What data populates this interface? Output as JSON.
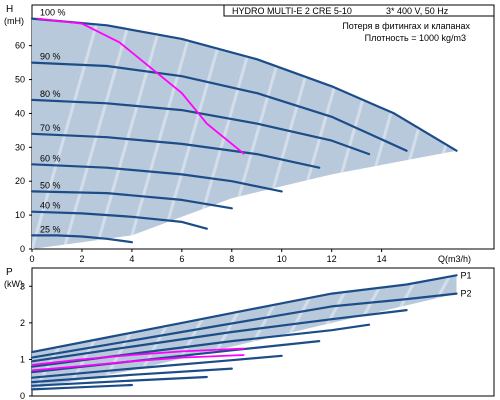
{
  "header": {
    "model": "HYDRO MULTI-E 2 CRE 5-10",
    "supply": "3* 400 V, 50 Hz",
    "note1": "Потеря в фитингах и клапанах",
    "note2": "Плотность = 1000 kg/m3"
  },
  "colors": {
    "envelope": "#b9c9dc",
    "curve": "#1c4d88",
    "system_curve": "#ff00ff",
    "frame": "#000000",
    "hatch": "#e9eff6"
  },
  "chart_data": [
    {
      "type": "line",
      "ylabel_top": "H",
      "ylabel_unit": "(mH)",
      "xlabel": "Q(m3/h)",
      "xlim": [
        0,
        18.5
      ],
      "ylim": [
        0,
        72
      ],
      "xticks": [
        0,
        2,
        4,
        6,
        8,
        10,
        12,
        14
      ],
      "yticks": [
        0,
        10,
        20,
        30,
        40,
        50,
        60
      ],
      "grid": false,
      "envelope": [
        [
          0,
          68
        ],
        [
          3,
          66
        ],
        [
          6,
          62
        ],
        [
          9,
          56
        ],
        [
          12,
          48
        ],
        [
          14.5,
          40
        ],
        [
          17,
          29
        ],
        [
          12,
          22
        ],
        [
          8,
          15
        ],
        [
          4,
          4
        ],
        [
          2,
          2
        ],
        [
          0,
          0
        ]
      ],
      "series": [
        {
          "name": "100 %",
          "points": [
            [
              0,
              68
            ],
            [
              3,
              66
            ],
            [
              6,
              62
            ],
            [
              9,
              56
            ],
            [
              12,
              48
            ],
            [
              14.5,
              40
            ],
            [
              17,
              29
            ]
          ]
        },
        {
          "name": "90 %",
          "points": [
            [
              0,
              55
            ],
            [
              3,
              54
            ],
            [
              6,
              51
            ],
            [
              9,
              46
            ],
            [
              12,
              39
            ],
            [
              15,
              29
            ]
          ]
        },
        {
          "name": "80 %",
          "points": [
            [
              0,
              44
            ],
            [
              3,
              43
            ],
            [
              6,
              41
            ],
            [
              9,
              37
            ],
            [
              12,
              32
            ],
            [
              13.5,
              28
            ]
          ]
        },
        {
          "name": "70 %",
          "points": [
            [
              0,
              34
            ],
            [
              3,
              33
            ],
            [
              6,
              31
            ],
            [
              9,
              28
            ],
            [
              11.5,
              24
            ]
          ]
        },
        {
          "name": "60 %",
          "points": [
            [
              0,
              25
            ],
            [
              3,
              24
            ],
            [
              6,
              22
            ],
            [
              8,
              20
            ],
            [
              10,
              17
            ]
          ]
        },
        {
          "name": "50 %",
          "points": [
            [
              0,
              17
            ],
            [
              3,
              16.5
            ],
            [
              6,
              14.5
            ],
            [
              8,
              12
            ]
          ]
        },
        {
          "name": "40 %",
          "points": [
            [
              0,
              11
            ],
            [
              2,
              10.5
            ],
            [
              4,
              9.5
            ],
            [
              6,
              8
            ],
            [
              7,
              6
            ]
          ]
        },
        {
          "name": "25 %",
          "points": [
            [
              0,
              4
            ],
            [
              1,
              4
            ],
            [
              2,
              3.7
            ],
            [
              3,
              3
            ],
            [
              4,
              2
            ]
          ]
        }
      ],
      "system_curve": [
        [
          0.2,
          68
        ],
        [
          2,
          66.5
        ],
        [
          3.5,
          61
        ],
        [
          5,
          52
        ],
        [
          6,
          46
        ],
        [
          7,
          37
        ],
        [
          8,
          31
        ],
        [
          8.5,
          28
        ]
      ]
    },
    {
      "type": "line",
      "ylabel_top": "P",
      "ylabel_unit": "(kW)",
      "xlim": [
        0,
        18.5
      ],
      "ylim": [
        0,
        3.5
      ],
      "yticks": [
        0,
        1,
        2,
        3
      ],
      "grid": false,
      "envelope": [
        [
          0,
          1.2
        ],
        [
          3,
          1.6
        ],
        [
          6,
          2.0
        ],
        [
          9,
          2.4
        ],
        [
          12,
          2.8
        ],
        [
          15,
          3.05
        ],
        [
          17,
          3.3
        ],
        [
          17,
          2.8
        ],
        [
          12,
          2.0
        ],
        [
          8,
          1.35
        ],
        [
          4,
          0.7
        ],
        [
          0,
          0.2
        ]
      ],
      "series": [
        {
          "name": "P1",
          "points": [
            [
              0,
              1.2
            ],
            [
              3,
              1.6
            ],
            [
              6,
              2.0
            ],
            [
              9,
              2.4
            ],
            [
              12,
              2.8
            ],
            [
              15,
              3.05
            ],
            [
              17,
              3.3
            ]
          ]
        },
        {
          "name": "P2",
          "points": [
            [
              0,
              1.05
            ],
            [
              3,
              1.4
            ],
            [
              6,
              1.75
            ],
            [
              9,
              2.1
            ],
            [
              12,
              2.45
            ],
            [
              15,
              2.65
            ],
            [
              17,
              2.8
            ]
          ]
        },
        {
          "name": "",
          "points": [
            [
              0,
              0.95
            ],
            [
              4,
              1.35
            ],
            [
              8,
              1.75
            ],
            [
              12,
              2.1
            ],
            [
              15,
              2.35
            ]
          ]
        },
        {
          "name": "",
          "points": [
            [
              0,
              0.8
            ],
            [
              4,
              1.15
            ],
            [
              8,
              1.5
            ],
            [
              12,
              1.8
            ],
            [
              13.5,
              1.95
            ]
          ]
        },
        {
          "name": "",
          "points": [
            [
              0,
              0.65
            ],
            [
              4,
              0.95
            ],
            [
              8,
              1.25
            ],
            [
              11.5,
              1.5
            ]
          ]
        },
        {
          "name": "",
          "points": [
            [
              0,
              0.5
            ],
            [
              4,
              0.75
            ],
            [
              8,
              0.98
            ],
            [
              10,
              1.1
            ]
          ]
        },
        {
          "name": "",
          "points": [
            [
              0,
              0.38
            ],
            [
              4,
              0.58
            ],
            [
              8,
              0.75
            ]
          ]
        },
        {
          "name": "",
          "points": [
            [
              0,
              0.28
            ],
            [
              4,
              0.42
            ],
            [
              7,
              0.52
            ]
          ]
        },
        {
          "name": "",
          "points": [
            [
              0,
              0.18
            ],
            [
              2,
              0.24
            ],
            [
              4,
              0.3
            ]
          ]
        }
      ],
      "system_curve": [
        [
          0,
          0.85
        ],
        [
          2,
          1.0
        ],
        [
          4,
          1.12
        ],
        [
          6,
          1.22
        ],
        [
          8.5,
          1.3
        ]
      ],
      "system_curve_2": [
        [
          0,
          0.7
        ],
        [
          2,
          0.82
        ],
        [
          4,
          0.95
        ],
        [
          6,
          1.05
        ],
        [
          8.5,
          1.12
        ]
      ]
    }
  ]
}
